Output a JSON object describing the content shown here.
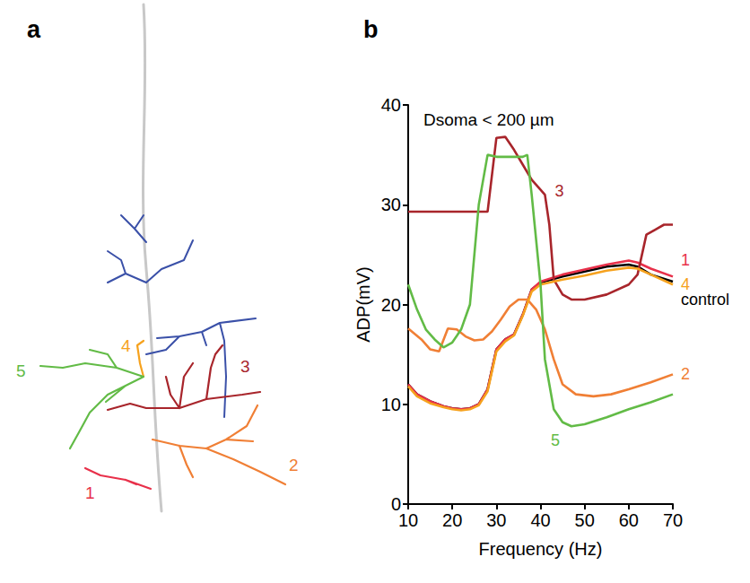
{
  "panels": [
    {
      "label": "a",
      "branch_labels": [
        {
          "text": "1",
          "color": "#e8304a"
        },
        {
          "text": "2",
          "color": "#f07f35"
        },
        {
          "text": "3",
          "color": "#a8252b"
        },
        {
          "text": "4",
          "color": "#f6a21e"
        },
        {
          "text": "5",
          "color": "#62bb46"
        }
      ]
    },
    {
      "label": "b"
    }
  ],
  "chart_data": {
    "type": "line",
    "annotation": "Dsoma < 200 µm",
    "x_label": "Frequency (Hz)",
    "y_label": "ADP(mV)",
    "xlim": [
      10,
      70
    ],
    "xticks": [
      10,
      20,
      30,
      40,
      50,
      60,
      70
    ],
    "ylim": [
      0,
      40
    ],
    "yticks": [
      0,
      10,
      20,
      30,
      40
    ],
    "grid": false,
    "series": [
      {
        "name": "control",
        "color": "#000000",
        "x": [
          10,
          12,
          15,
          18,
          20,
          22,
          24,
          26,
          28,
          30,
          32,
          34,
          36,
          38,
          40,
          45,
          50,
          55,
          60,
          62,
          65,
          70
        ],
        "values": [
          12,
          11,
          10.3,
          9.8,
          9.6,
          9.5,
          9.6,
          10,
          11.5,
          15.5,
          16.5,
          17,
          19,
          21.5,
          22.2,
          22.8,
          23.3,
          23.8,
          24,
          23.8,
          23,
          22.3
        ]
      },
      {
        "name": "1",
        "color": "#e8304a",
        "x": [
          10,
          12,
          15,
          18,
          20,
          22,
          24,
          26,
          28,
          30,
          32,
          34,
          36,
          38,
          40,
          45,
          50,
          55,
          60,
          62,
          65,
          70
        ],
        "values": [
          12,
          11,
          10.3,
          9.8,
          9.6,
          9.5,
          9.6,
          10,
          11.5,
          15.5,
          16.5,
          17,
          19,
          21.5,
          22.3,
          23,
          23.5,
          24,
          24.4,
          24.2,
          23.6,
          22.8
        ]
      },
      {
        "name": "2",
        "color": "#f07f35",
        "x": [
          10,
          13,
          15,
          17,
          19,
          21,
          23,
          25,
          27,
          29,
          31,
          33,
          35,
          37,
          39,
          41,
          43,
          45,
          48,
          52,
          56,
          60,
          65,
          70
        ],
        "values": [
          17.6,
          16.5,
          15.5,
          15.3,
          17.6,
          17.5,
          16.8,
          16.4,
          16.5,
          17.3,
          18.5,
          19.8,
          20.5,
          20.5,
          19.5,
          17.5,
          14.5,
          12,
          11,
          10.8,
          11,
          11.5,
          12.2,
          13
        ]
      },
      {
        "name": "3",
        "color": "#a8252b",
        "x": [
          10,
          15,
          20,
          25,
          28,
          30,
          32,
          34,
          36,
          38,
          41,
          42,
          43,
          45,
          47,
          50,
          55,
          60,
          62,
          64,
          66,
          68,
          70
        ],
        "values": [
          29.3,
          29.3,
          29.3,
          29.3,
          29.3,
          36.7,
          36.8,
          35.5,
          34,
          32.5,
          31,
          28,
          22.5,
          21,
          20.5,
          20.5,
          21,
          22,
          23,
          27,
          27.5,
          28,
          28
        ]
      },
      {
        "name": "4",
        "color": "#f6a21e",
        "x": [
          10,
          12,
          15,
          18,
          20,
          22,
          24,
          26,
          28,
          30,
          32,
          34,
          36,
          38,
          40,
          45,
          50,
          55,
          60,
          62,
          65,
          70
        ],
        "values": [
          11.8,
          10.8,
          10.1,
          9.7,
          9.5,
          9.4,
          9.5,
          9.9,
          11.3,
          15.3,
          16.3,
          16.9,
          18.9,
          21.3,
          22,
          22.5,
          22.9,
          23.4,
          23.7,
          23.6,
          23,
          22
        ]
      },
      {
        "name": "5",
        "color": "#62bb46",
        "x": [
          10,
          12,
          14,
          16,
          18,
          20,
          22,
          24,
          26,
          28,
          30,
          32,
          34,
          36,
          37,
          38,
          40,
          41,
          43,
          45,
          47,
          50,
          55,
          60,
          65,
          70
        ],
        "values": [
          22,
          19.5,
          17.5,
          16.5,
          15.7,
          16.2,
          17.5,
          20,
          30,
          35,
          34.8,
          34.8,
          34.8,
          34.8,
          35,
          31,
          22,
          14.5,
          9.5,
          8.2,
          7.8,
          8,
          8.7,
          9.5,
          10.2,
          11
        ]
      }
    ]
  }
}
